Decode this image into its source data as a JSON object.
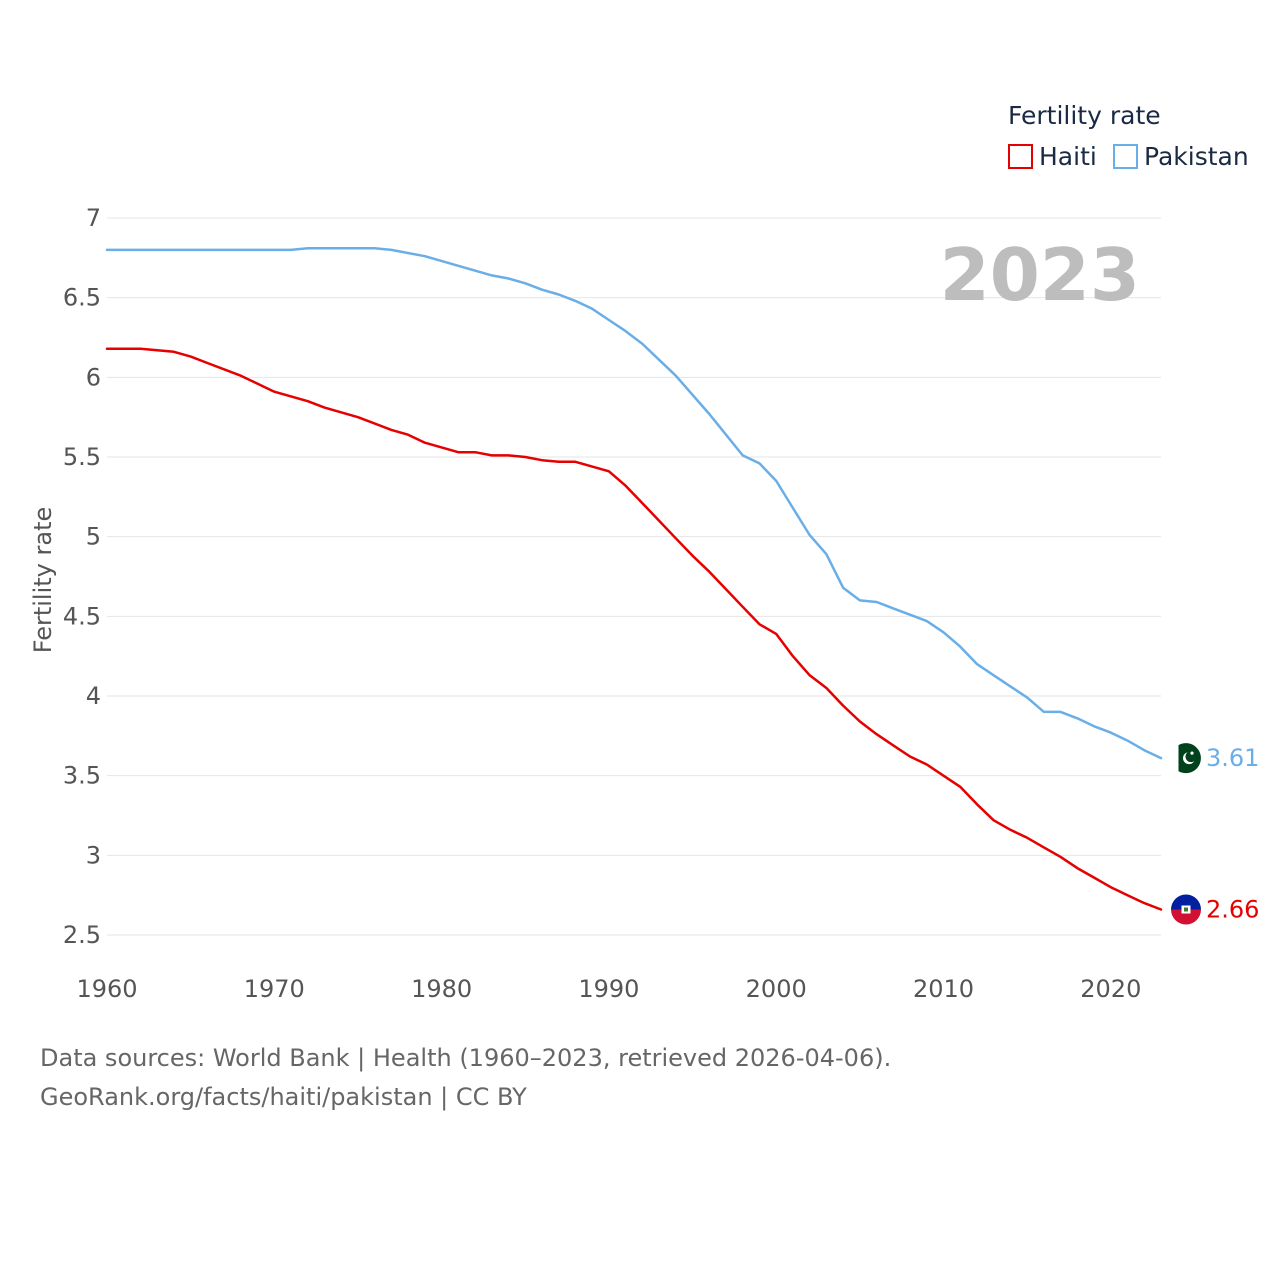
{
  "chart_data": {
    "type": "line",
    "legend_title": "Fertility rate",
    "ylabel": "Fertility rate",
    "xlabel": "",
    "current_year": "2023",
    "xlim": [
      1960,
      2023
    ],
    "ylim": [
      2.5,
      7
    ],
    "x_ticks": [
      1960,
      1970,
      1980,
      1990,
      2000,
      2010,
      2020
    ],
    "y_ticks": [
      2.5,
      3,
      3.5,
      4,
      4.5,
      5,
      5.5,
      6,
      6.5,
      7
    ],
    "y_tick_labels": [
      "2.5",
      "3",
      "3.5",
      "4",
      "4.5",
      "5",
      "5.5",
      "6",
      "6.5",
      "7"
    ],
    "series": [
      {
        "name": "Haiti",
        "color": "#e60000",
        "end_label": "2.66",
        "flag_colors": [
          "#00209f",
          "#d21034"
        ],
        "points": [
          [
            1960,
            6.18
          ],
          [
            1962,
            6.18
          ],
          [
            1964,
            6.16
          ],
          [
            1965,
            6.13
          ],
          [
            1966,
            6.09
          ],
          [
            1968,
            6.01
          ],
          [
            1970,
            5.91
          ],
          [
            1972,
            5.85
          ],
          [
            1973,
            5.81
          ],
          [
            1975,
            5.75
          ],
          [
            1977,
            5.67
          ],
          [
            1978,
            5.64
          ],
          [
            1979,
            5.59
          ],
          [
            1981,
            5.53
          ],
          [
            1982,
            5.53
          ],
          [
            1983,
            5.51
          ],
          [
            1984,
            5.51
          ],
          [
            1985,
            5.5
          ],
          [
            1986,
            5.48
          ],
          [
            1987,
            5.47
          ],
          [
            1988,
            5.47
          ],
          [
            1989,
            5.44
          ],
          [
            1990,
            5.41
          ],
          [
            1991,
            5.32
          ],
          [
            1992,
            5.21
          ],
          [
            1993,
            5.1
          ],
          [
            1994,
            4.99
          ],
          [
            1995,
            4.88
          ],
          [
            1996,
            4.78
          ],
          [
            1997,
            4.67
          ],
          [
            1998,
            4.56
          ],
          [
            1999,
            4.45
          ],
          [
            2000,
            4.39
          ],
          [
            2001,
            4.25
          ],
          [
            2002,
            4.13
          ],
          [
            2003,
            4.05
          ],
          [
            2004,
            3.94
          ],
          [
            2005,
            3.84
          ],
          [
            2006,
            3.76
          ],
          [
            2007,
            3.69
          ],
          [
            2008,
            3.62
          ],
          [
            2009,
            3.57
          ],
          [
            2010,
            3.5
          ],
          [
            2011,
            3.43
          ],
          [
            2012,
            3.32
          ],
          [
            2013,
            3.22
          ],
          [
            2014,
            3.16
          ],
          [
            2015,
            3.11
          ],
          [
            2016,
            3.05
          ],
          [
            2017,
            2.99
          ],
          [
            2018,
            2.92
          ],
          [
            2019,
            2.86
          ],
          [
            2020,
            2.8
          ],
          [
            2021,
            2.75
          ],
          [
            2022,
            2.7
          ],
          [
            2023,
            2.66
          ]
        ]
      },
      {
        "name": "Pakistan",
        "color": "#6aaee8",
        "end_label": "3.61",
        "flag_colors": [
          "#01411c",
          "#ffffff"
        ],
        "points": [
          [
            1960,
            6.8
          ],
          [
            1971,
            6.8
          ],
          [
            1972,
            6.81
          ],
          [
            1976,
            6.81
          ],
          [
            1977,
            6.8
          ],
          [
            1979,
            6.76
          ],
          [
            1981,
            6.7
          ],
          [
            1983,
            6.64
          ],
          [
            1984,
            6.62
          ],
          [
            1985,
            6.59
          ],
          [
            1986,
            6.55
          ],
          [
            1987,
            6.52
          ],
          [
            1988,
            6.48
          ],
          [
            1989,
            6.43
          ],
          [
            1990,
            6.36
          ],
          [
            1991,
            6.29
          ],
          [
            1992,
            6.21
          ],
          [
            1993,
            6.11
          ],
          [
            1994,
            6.01
          ],
          [
            1995,
            5.89
          ],
          [
            1996,
            5.77
          ],
          [
            1997,
            5.64
          ],
          [
            1998,
            5.51
          ],
          [
            1999,
            5.46
          ],
          [
            2000,
            5.35
          ],
          [
            2001,
            5.18
          ],
          [
            2002,
            5.01
          ],
          [
            2003,
            4.89
          ],
          [
            2004,
            4.68
          ],
          [
            2005,
            4.6
          ],
          [
            2006,
            4.59
          ],
          [
            2007,
            4.55
          ],
          [
            2008,
            4.51
          ],
          [
            2009,
            4.47
          ],
          [
            2010,
            4.4
          ],
          [
            2011,
            4.31
          ],
          [
            2012,
            4.2
          ],
          [
            2013,
            4.13
          ],
          [
            2014,
            4.06
          ],
          [
            2015,
            3.99
          ],
          [
            2016,
            3.9
          ],
          [
            2017,
            3.9
          ],
          [
            2018,
            3.86
          ],
          [
            2019,
            3.81
          ],
          [
            2020,
            3.77
          ],
          [
            2021,
            3.72
          ],
          [
            2022,
            3.66
          ],
          [
            2023,
            3.61
          ]
        ]
      }
    ]
  },
  "footer": {
    "line1": "Data sources: World Bank | Health (1960–2023, retrieved 2026-04-06).",
    "line2": "GeoRank.org/facts/haiti/pakistan | CC BY"
  }
}
